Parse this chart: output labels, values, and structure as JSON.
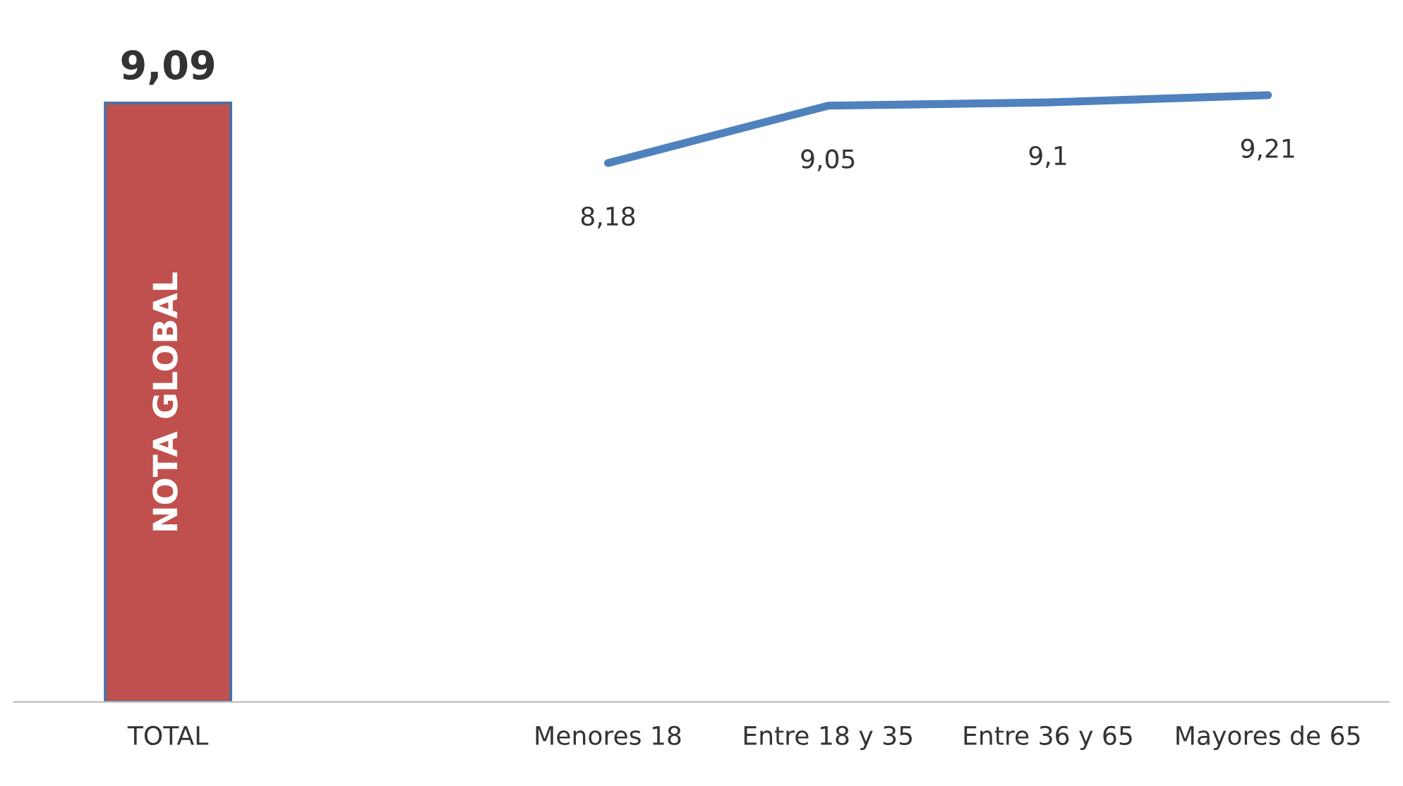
{
  "chart_data": {
    "type": "bar",
    "categories": [
      "TOTAL",
      null,
      "Menores 18",
      "Entre 18 y 35",
      "Entre 36 y 65",
      "Mayores de 65"
    ],
    "series": [
      {
        "color": "#c0504d",
        "values": [
          9.09,
          null,
          null,
          null,
          null,
          null
        ],
        "value_labels": [
          "9,09",
          null,
          null,
          null,
          null,
          null
        ]
      },
      {
        "type": "line",
        "color": "#4f81bd",
        "values": [
          null,
          null,
          8.18,
          9.05,
          9.1,
          9.21
        ],
        "value_labels": [
          null,
          null,
          "8,18",
          "9,05",
          "9,1",
          "9,21"
        ]
      }
    ],
    "annotations": [
      "NOTA GLOBAL"
    ],
    "tick_labels": "x",
    "grid": false,
    "legend": false,
    "marker": "none",
    "line_style": "solid"
  }
}
